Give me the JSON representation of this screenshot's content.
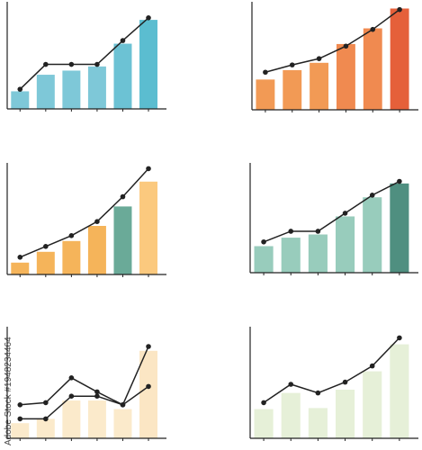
{
  "watermark": "Adobe Stock #1948234464",
  "chart_data": [
    {
      "type": "bar",
      "categories": [
        null,
        null,
        null,
        null,
        null,
        null
      ],
      "ylim": [
        0,
        100
      ],
      "series": [
        {
          "type": "bar",
          "colors": [
            "#7ec8d8",
            "#7ec8d8",
            "#7ec8d8",
            "#7ec8d8",
            "#6cc2d4",
            "#5bbdd0"
          ],
          "values": [
            17,
            33,
            37,
            41,
            63,
            86
          ]
        },
        {
          "type": "line",
          "color": "#222222",
          "values": [
            19,
            43,
            43,
            43,
            66,
            88
          ]
        }
      ]
    },
    {
      "type": "bar",
      "categories": [
        null,
        null,
        null,
        null,
        null,
        null
      ],
      "ylim": [
        0,
        100
      ],
      "series": [
        {
          "type": "bar",
          "colors": [
            "#f29a55",
            "#f29a55",
            "#f29a55",
            "#f08a50",
            "#f08a50",
            "#e5603a"
          ],
          "values": [
            29,
            38,
            45,
            63,
            78,
            97
          ]
        },
        {
          "type": "line",
          "color": "#222222",
          "values": [
            36,
            43,
            49,
            61,
            77,
            96
          ]
        }
      ]
    },
    {
      "type": "bar",
      "categories": [
        null,
        null,
        null,
        null,
        null,
        null
      ],
      "ylim": [
        0,
        100
      ],
      "series": [
        {
          "type": "bar",
          "colors": [
            "#f5b45a",
            "#f5b45a",
            "#f5b45a",
            "#f5b45a",
            "#6aaa98",
            "#fbc97e"
          ],
          "values": [
            11,
            21,
            31,
            45,
            63,
            86
          ]
        },
        {
          "type": "line",
          "color": "#222222",
          "values": [
            16,
            26,
            36,
            49,
            72,
            98
          ]
        }
      ]
    },
    {
      "type": "bar",
      "categories": [
        null,
        null,
        null,
        null,
        null,
        null
      ],
      "ylim": [
        0,
        100
      ],
      "series": [
        {
          "type": "bar",
          "colors": [
            "#98ccbc",
            "#98ccbc",
            "#98ccbc",
            "#98ccbc",
            "#98ccbc",
            "#4f8f80"
          ],
          "values": [
            25,
            33,
            36,
            53,
            71,
            84
          ]
        },
        {
          "type": "line",
          "color": "#222222",
          "values": [
            29,
            39,
            39,
            56,
            73,
            86
          ]
        }
      ]
    },
    {
      "type": "bar",
      "categories": [
        null,
        null,
        null,
        null,
        null,
        null
      ],
      "ylim": [
        0,
        100
      ],
      "series": [
        {
          "type": "bar",
          "colors": [
            "#fbeacb",
            "#fbeacb",
            "#fbeacb",
            "#fbeacb",
            "#fbeacb",
            "#fbe6c4"
          ],
          "values": [
            14,
            18,
            35,
            35,
            27,
            81
          ]
        },
        {
          "type": "line",
          "color": "#222222",
          "values": [
            31,
            33,
            56,
            43,
            31,
            85
          ]
        },
        {
          "type": "line",
          "color": "#222222",
          "values": [
            18,
            18,
            39,
            39,
            31,
            48
          ]
        }
      ]
    },
    {
      "type": "bar",
      "categories": [
        null,
        null,
        null,
        null,
        null,
        null
      ],
      "ylim": [
        0,
        100
      ],
      "series": [
        {
          "type": "bar",
          "colors": [
            "#e6f0d8",
            "#e6f0d8",
            "#e6f0d8",
            "#e6f0d8",
            "#e6f0d8",
            "#e6f0d8"
          ],
          "values": [
            27,
            42,
            28,
            45,
            62,
            87
          ]
        },
        {
          "type": "line",
          "color": "#222222",
          "values": [
            33,
            50,
            42,
            52,
            67,
            93
          ]
        }
      ]
    }
  ]
}
